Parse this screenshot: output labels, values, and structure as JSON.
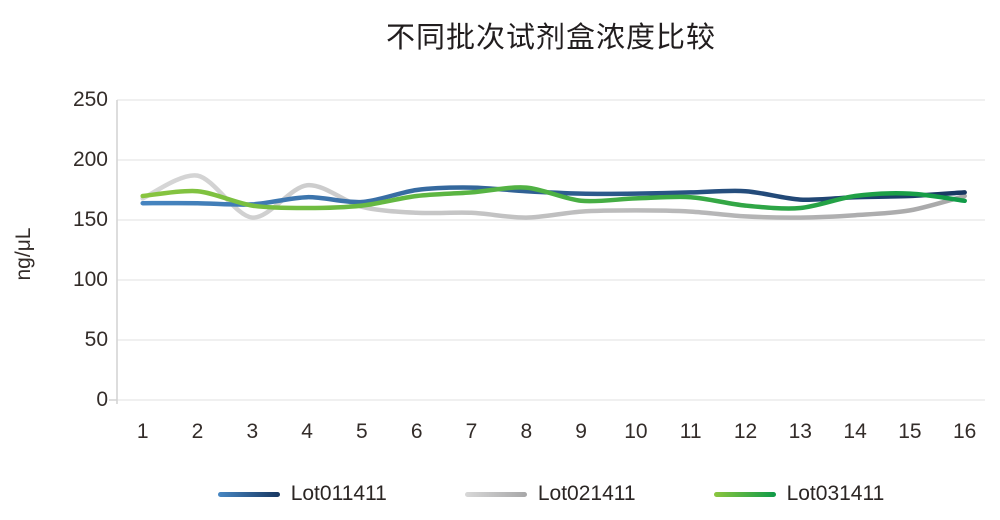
{
  "chart_data": {
    "type": "line",
    "title": "不同批次试剂盒浓度比较",
    "xlabel": "",
    "ylabel": "ng/μL",
    "x": [
      1,
      2,
      3,
      4,
      5,
      6,
      7,
      8,
      9,
      10,
      11,
      12,
      13,
      14,
      15,
      16
    ],
    "ylim": [
      0,
      250
    ],
    "yticks": [
      0,
      50,
      100,
      150,
      200,
      250
    ],
    "grid": true,
    "legend_position": "bottom",
    "series": [
      {
        "name": "Lot011411",
        "color_start": "#4787c3",
        "color_end": "#173660",
        "values": [
          164,
          164,
          163,
          169,
          165,
          175,
          177,
          174,
          172,
          172,
          173,
          174,
          167,
          169,
          170,
          173
        ]
      },
      {
        "name": "Lot021411",
        "color_start": "#d8d8d8",
        "color_end": "#a7a7a8",
        "values": [
          168,
          187,
          152,
          179,
          161,
          156,
          156,
          152,
          157,
          158,
          157,
          153,
          152,
          154,
          158,
          170
        ]
      },
      {
        "name": "Lot031411",
        "color_start": "#8cc63f",
        "color_end": "#0e9a48",
        "values": [
          170,
          174,
          162,
          160,
          162,
          170,
          173,
          177,
          166,
          168,
          169,
          162,
          160,
          170,
          172,
          166
        ]
      }
    ],
    "colors": {
      "gridline": "#ececec",
      "axis": "#d2d2d2",
      "text": "#332c29",
      "title": "#211d1e"
    }
  }
}
